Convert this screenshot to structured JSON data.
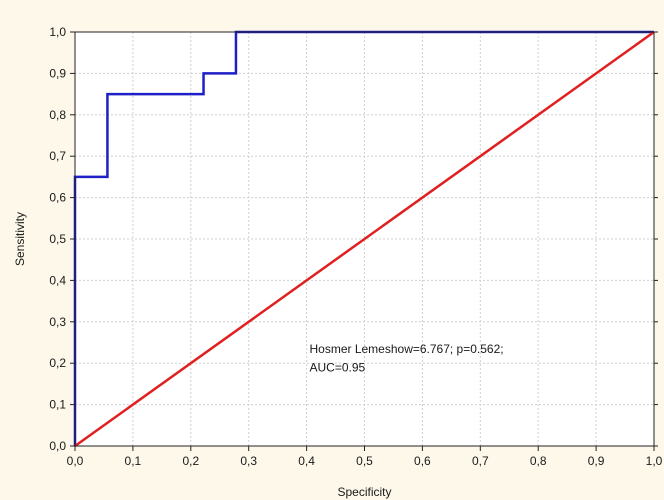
{
  "chart_data": {
    "type": "line",
    "title": "",
    "xlabel": "Specificity",
    "ylabel": "Sensitivity",
    "xlim": [
      0,
      1
    ],
    "ylim": [
      0,
      1
    ],
    "x_ticks": [
      "0,0",
      "0,1",
      "0,2",
      "0,3",
      "0,4",
      "0,5",
      "0,6",
      "0,7",
      "0,8",
      "0,9",
      "1,0"
    ],
    "y_ticks": [
      "0,0",
      "0,1",
      "0,2",
      "0,3",
      "0,4",
      "0,5",
      "0,6",
      "0,7",
      "0,8",
      "0,9",
      "1,0"
    ],
    "grid": true,
    "series": [
      {
        "color": "#1f1fc8",
        "x": [
          0,
          0,
          0.056,
          0.056,
          0.222,
          0.222,
          0.278,
          0.278,
          1.0
        ],
        "y": [
          0,
          0.65,
          0.65,
          0.85,
          0.85,
          0.9,
          0.9,
          1.0,
          1.0
        ]
      },
      {
        "color": "#e02020",
        "x": [
          0,
          1
        ],
        "y": [
          0,
          1
        ]
      }
    ],
    "annotations": [
      "Hosmer Lemeshow=6.767; p=0.562;",
      "AUC=0.95"
    ]
  },
  "colors": {
    "background": "#fdf8e9",
    "plot_background": "#ffffff",
    "grid": "#cfcfcf",
    "frame": "#222222"
  }
}
